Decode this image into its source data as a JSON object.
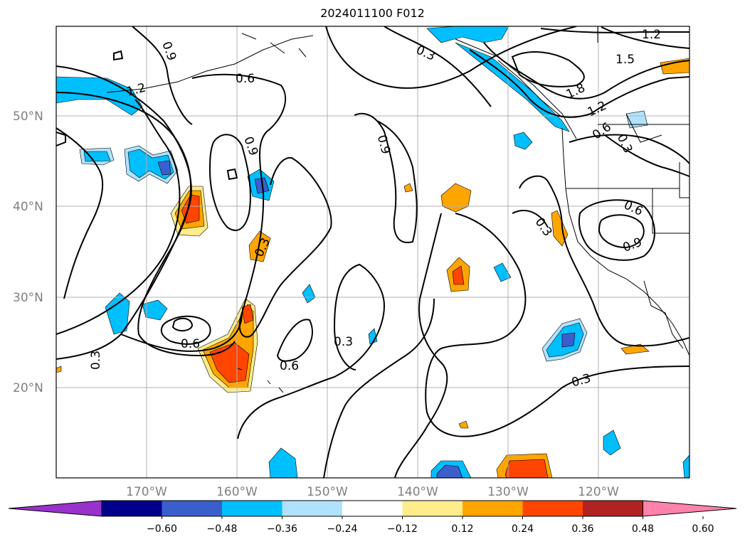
{
  "title": "2024011100 F012",
  "map": {
    "lat_labels": [
      "50°N",
      "40°N",
      "30°N",
      "20°N"
    ],
    "lon_labels": [
      "170°W",
      "160°W",
      "150°W",
      "140°W",
      "130°W",
      "120°W"
    ],
    "contour_labels": [
      "0.9",
      "0.6",
      "1.2",
      "0.3",
      "1.2",
      "1.5",
      "1.8",
      "1.2",
      "0.6",
      "0.3",
      "0.9",
      "0.9",
      "0.6",
      "0.3",
      "0.9",
      "0.3",
      "0.6",
      "0.3",
      "0.3",
      "0.6",
      "0.3"
    ]
  },
  "colorbar": {
    "colors": [
      "#9932CC",
      "#00008B",
      "#3A5FCD",
      "#00BFFF",
      "#B0E2FF",
      "#FFFFFF",
      "#FFEC8B",
      "#FFA500",
      "#FF4500",
      "#B22222",
      "#FF82AB"
    ],
    "ticks": [
      "−0.60",
      "−0.48",
      "−0.36",
      "−0.24",
      "−0.12",
      "0.12",
      "0.24",
      "0.36",
      "0.48",
      "0.60"
    ]
  }
}
